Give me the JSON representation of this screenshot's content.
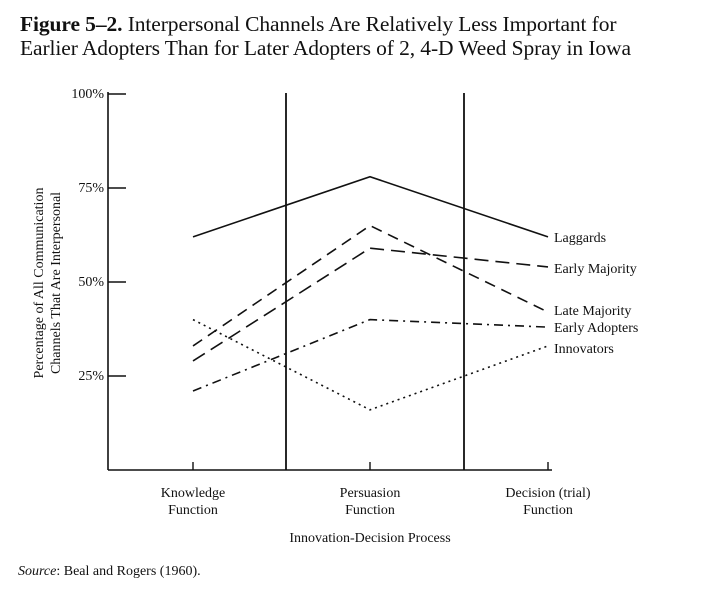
{
  "figure": {
    "number": "Figure 5–2.",
    "title_line1": "Interpersonal Channels Are Relatively Less Important for",
    "title_line2": "Earlier Adopters Than for Later Adopters of 2, 4-D Weed Spray in Iowa"
  },
  "source": {
    "label": "Source",
    "text": ": Beal and Rogers (1960)."
  },
  "chart_data": {
    "type": "line",
    "title": "Interpersonal Channels Are Relatively Less Important for Earlier Adopters Than for Later Adopters of 2, 4-D Weed Spray in Iowa",
    "xlabel": "Innovation-Decision Process",
    "ylabel_line1": "Percentage of All Communication",
    "ylabel_line2": "Channels That Are Interpersonal",
    "ylim": [
      0,
      100
    ],
    "yticks": [
      {
        "value": 25,
        "label": "25%"
      },
      {
        "value": 50,
        "label": "50%"
      },
      {
        "value": 75,
        "label": "75%"
      },
      {
        "value": 100,
        "label": "100%"
      }
    ],
    "categories": [
      {
        "line1": "Knowledge",
        "line2": "Function"
      },
      {
        "line1": "Persuasion",
        "line2": "Function"
      },
      {
        "line1": "Decision (trial)",
        "line2": "Function"
      }
    ],
    "series": [
      {
        "name": "Laggards",
        "values": [
          62,
          78,
          62
        ],
        "style": "solid"
      },
      {
        "name": "Early Majority",
        "values": [
          29,
          59,
          54
        ],
        "style": "longdash"
      },
      {
        "name": "Late Majority",
        "values": [
          33,
          65,
          42
        ],
        "style": "dash"
      },
      {
        "name": "Early Adopters",
        "values": [
          21,
          40,
          38
        ],
        "style": "dashdot"
      },
      {
        "name": "Innovators",
        "values": [
          40,
          16,
          33
        ],
        "style": "dotted"
      }
    ],
    "grid": false,
    "legend": "right-inline"
  }
}
